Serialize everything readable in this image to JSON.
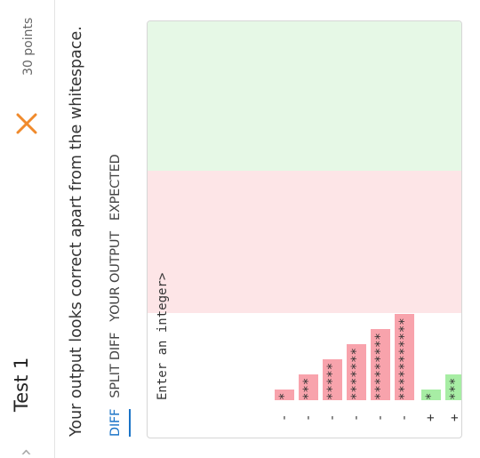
{
  "header": {
    "title": "Test 1",
    "points": "30 points",
    "chevron_icon": "chevron-right-icon",
    "status_icon": "x-fail-icon",
    "status_color": "#f08a2c"
  },
  "message": "Your output looks correct apart from the whitespace.",
  "tabs": [
    {
      "label": "DIFF",
      "active": true
    },
    {
      "label": "SPLIT DIFF",
      "active": false
    },
    {
      "label": "YOUR OUTPUT",
      "active": false
    },
    {
      "label": "EXPECTED",
      "active": false
    }
  ],
  "diff": {
    "colors": {
      "removed_band": "#fde5e7",
      "removed_highlight": "#f8a3ac",
      "added_band": "#e6f8e6",
      "added_highlight": "#a7eda4",
      "active_tab": "#1a73c7"
    },
    "lines": [
      {
        "prefix": "",
        "text": "Enter an integer>"
      },
      {
        "prefix": "-",
        "text": "*"
      },
      {
        "prefix": "-",
        "text": "***"
      },
      {
        "prefix": "-",
        "text": "*****"
      },
      {
        "prefix": "-",
        "text": "*******"
      },
      {
        "prefix": "-",
        "text": "*********"
      },
      {
        "prefix": "-",
        "text": "***********"
      },
      {
        "prefix": "+",
        "text": "*"
      },
      {
        "prefix": "+",
        "text": "***"
      },
      {
        "prefix": "+",
        "text": "*****"
      },
      {
        "prefix": "+",
        "text": "*******"
      },
      {
        "prefix": "+",
        "text": "*********"
      },
      {
        "prefix": "+",
        "text": "***********"
      }
    ]
  }
}
